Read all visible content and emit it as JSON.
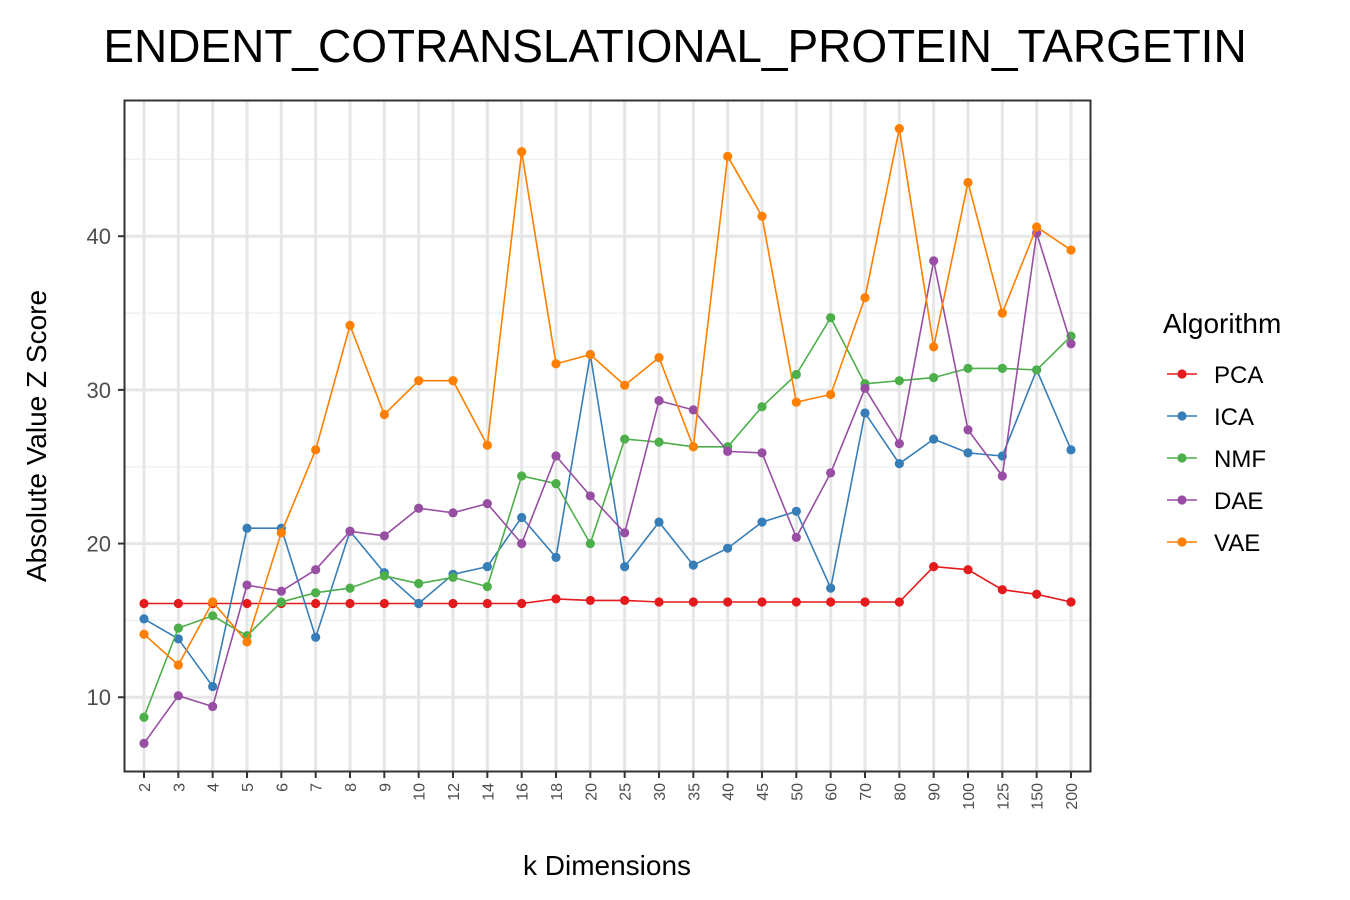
{
  "chart_data": {
    "type": "line",
    "title": "ENDENT_COTRANSLATIONAL_PROTEIN_TARGETIN",
    "xlabel": "k Dimensions",
    "ylabel": "Absolute Value Z Score",
    "categories": [
      "2",
      "3",
      "4",
      "5",
      "6",
      "7",
      "8",
      "9",
      "10",
      "12",
      "14",
      "16",
      "18",
      "20",
      "25",
      "30",
      "35",
      "40",
      "45",
      "50",
      "60",
      "70",
      "80",
      "90",
      "100",
      "125",
      "150",
      "200"
    ],
    "yticks": [
      10,
      20,
      30,
      40
    ],
    "ylim": [
      5.2,
      48.8
    ],
    "grid": true,
    "legend": {
      "title": "Algorithm",
      "placement": "right"
    },
    "series": [
      {
        "name": "PCA",
        "color": "#e41a1c",
        "values": [
          16.1,
          16.1,
          16.1,
          16.1,
          16.1,
          16.1,
          16.1,
          16.1,
          16.1,
          16.1,
          16.1,
          16.1,
          16.4,
          16.3,
          16.3,
          16.2,
          16.2,
          16.2,
          16.2,
          16.2,
          16.2,
          16.2,
          16.2,
          18.5,
          18.3,
          17.0,
          16.7,
          16.2
        ]
      },
      {
        "name": "ICA",
        "color": "#377eb8",
        "values": [
          15.1,
          13.8,
          10.7,
          21.0,
          21.0,
          13.9,
          20.8,
          18.1,
          16.1,
          18.0,
          18.5,
          21.7,
          19.1,
          32.3,
          18.5,
          21.4,
          18.6,
          19.7,
          21.4,
          22.1,
          17.1,
          28.5,
          25.2,
          26.8,
          25.9,
          25.7,
          31.3,
          26.1
        ]
      },
      {
        "name": "NMF",
        "color": "#4daf4a",
        "values": [
          8.7,
          14.5,
          15.3,
          14.0,
          16.2,
          16.8,
          17.1,
          17.9,
          17.4,
          17.8,
          17.2,
          24.4,
          23.9,
          20.0,
          26.8,
          26.6,
          26.3,
          26.3,
          28.9,
          31.0,
          34.7,
          30.4,
          30.6,
          30.8,
          31.4,
          31.4,
          31.3,
          33.5
        ]
      },
      {
        "name": "DAE",
        "color": "#984ea3",
        "values": [
          7.0,
          10.1,
          9.4,
          17.3,
          16.9,
          18.3,
          20.8,
          20.5,
          22.3,
          22.0,
          22.6,
          20.0,
          25.7,
          23.1,
          20.7,
          29.3,
          28.7,
          26.0,
          25.9,
          20.4,
          24.6,
          30.1,
          26.5,
          38.4,
          27.4,
          24.4,
          40.2,
          33.0
        ]
      },
      {
        "name": "VAE",
        "color": "#ff7f00",
        "values": [
          14.1,
          12.1,
          16.2,
          13.6,
          20.7,
          26.1,
          34.2,
          28.4,
          30.6,
          30.6,
          26.4,
          45.5,
          31.7,
          32.3,
          30.3,
          32.1,
          26.3,
          45.2,
          41.3,
          29.2,
          29.7,
          36.0,
          47.0,
          32.8,
          43.5,
          35.0,
          40.6,
          39.1
        ]
      }
    ]
  }
}
